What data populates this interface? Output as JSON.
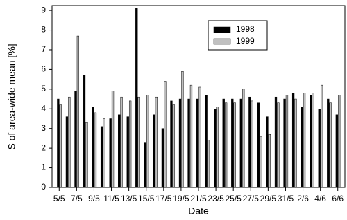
{
  "chart_data": {
    "type": "bar",
    "x_label": "Date",
    "y_label": "S of area-wide mean [%]",
    "categories": [
      "5/5",
      null,
      "7/5",
      null,
      "9/5",
      null,
      "11/5",
      null,
      "13/5",
      null,
      "15/5",
      null,
      "17/5",
      null,
      "19/5",
      null,
      "21/5",
      null,
      "23/5",
      null,
      "25/5",
      null,
      "27/5",
      null,
      "29/5",
      null,
      "31/5",
      null,
      "2/6",
      null,
      "4/6",
      null,
      "6/6"
    ],
    "series": [
      {
        "name": "1998",
        "color": "#000000",
        "values": [
          4.5,
          3.6,
          4.9,
          5.7,
          4.1,
          3.1,
          3.5,
          3.7,
          3.6,
          9.1,
          2.3,
          3.7,
          3.0,
          4.4,
          4.5,
          4.5,
          4.5,
          4.7,
          4.0,
          4.5,
          4.5,
          4.5,
          4.6,
          4.3,
          3.6,
          4.6,
          4.5,
          4.8,
          4.1,
          4.7,
          4.0,
          4.5,
          3.7
        ]
      },
      {
        "name": "1999",
        "color": "#c0c0c0",
        "values": [
          4.2,
          4.6,
          7.7,
          3.3,
          3.8,
          3.5,
          4.9,
          4.6,
          4.4,
          4.6,
          4.7,
          4.6,
          5.4,
          4.2,
          5.9,
          5.2,
          5.1,
          2.4,
          4.1,
          4.3,
          4.3,
          5.0,
          4.4,
          2.6,
          2.7,
          4.3,
          4.7,
          4.5,
          4.8,
          4.8,
          5.2,
          4.3,
          4.7
        ]
      }
    ],
    "ylim": [
      0,
      9.25
    ],
    "yticks": [
      0,
      1,
      2,
      3,
      4,
      5,
      6,
      7,
      8,
      9
    ]
  }
}
